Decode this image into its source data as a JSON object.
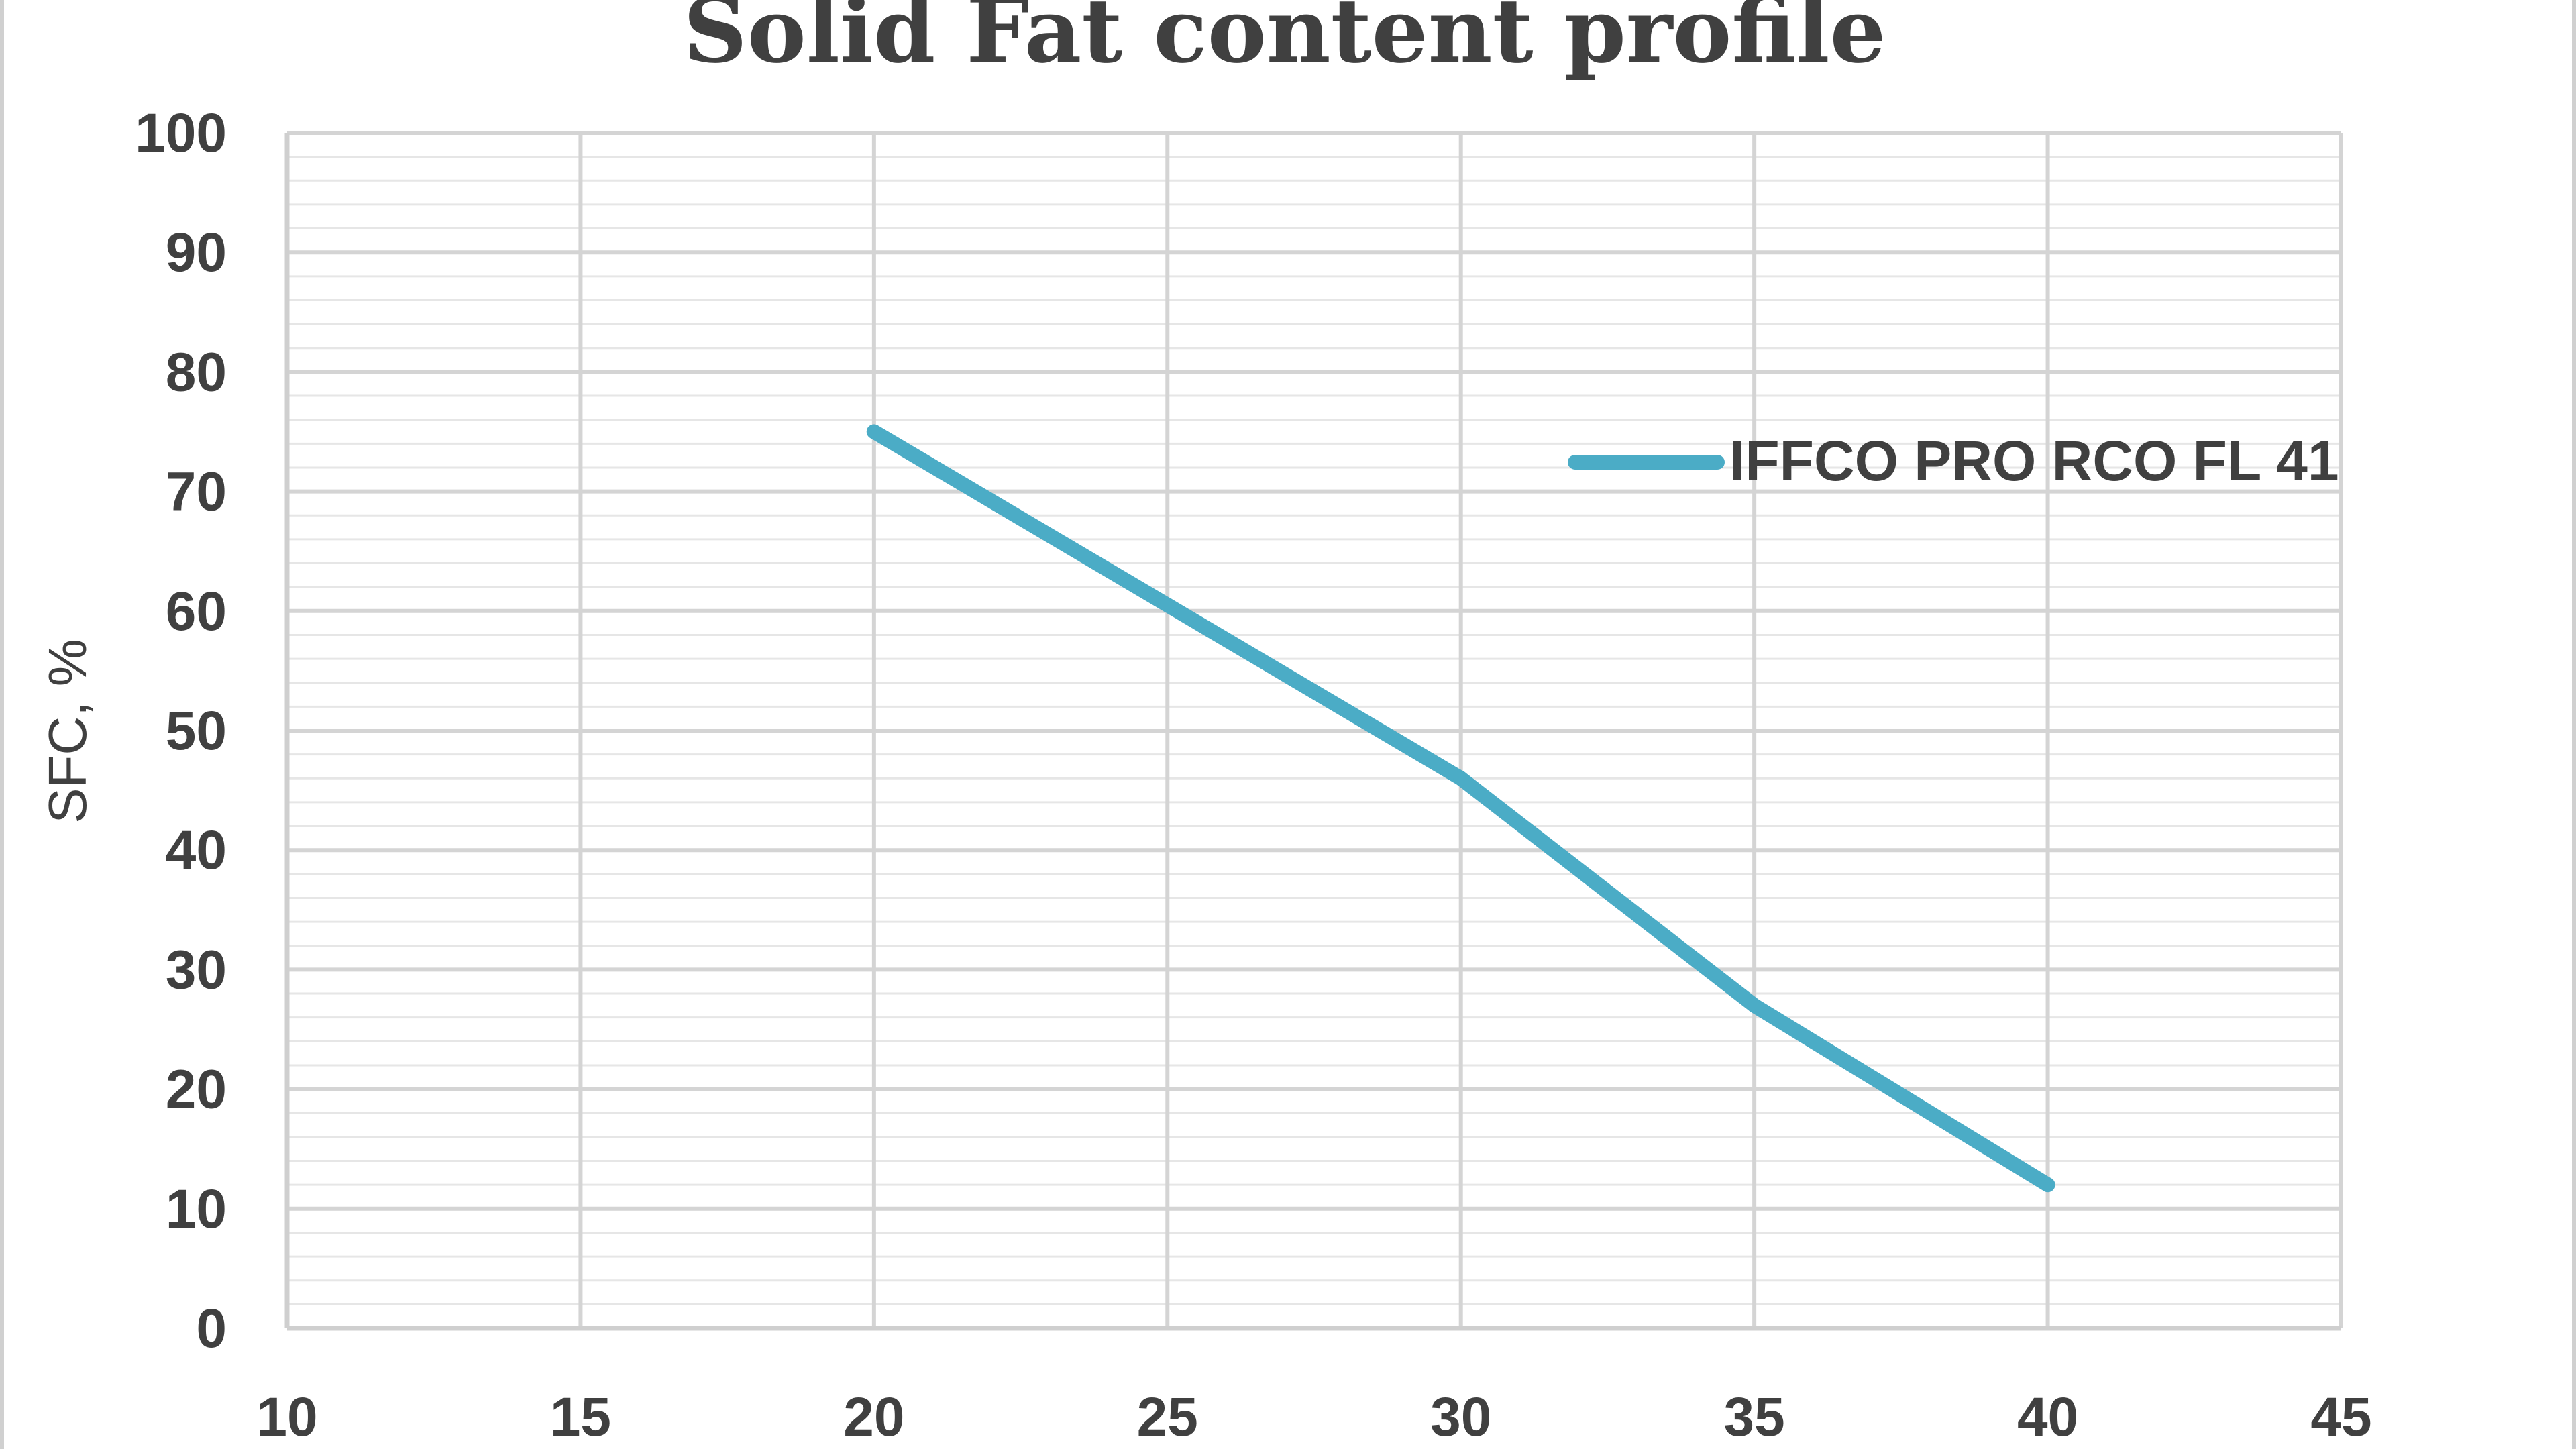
{
  "chart_data": {
    "type": "line",
    "title": "Solid Fat content profile",
    "xlabel": "",
    "ylabel": "SFC, %",
    "xlim": [
      10,
      45
    ],
    "ylim": [
      0,
      100
    ],
    "x_ticks": [
      10,
      15,
      20,
      25,
      30,
      35,
      40,
      45
    ],
    "y_ticks": [
      0,
      10,
      20,
      30,
      40,
      50,
      60,
      70,
      80,
      90,
      100
    ],
    "grid": true,
    "legend_position": "upper-right",
    "series": [
      {
        "name": "IFFCO PRO RCO FL 41",
        "color": "#4BACC6",
        "x": [
          20,
          25,
          30,
          35,
          40
        ],
        "y": [
          75,
          60.5,
          46,
          27,
          12
        ]
      }
    ]
  }
}
